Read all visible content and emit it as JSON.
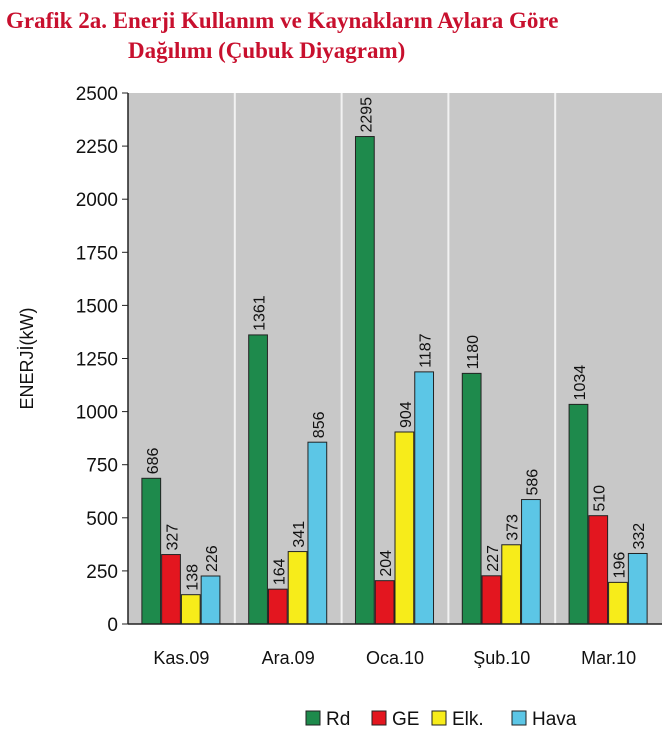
{
  "header": {
    "title_line1": "Grafik 2a. Enerji Kullanım ve Kaynakların Aylara Göre",
    "title_line2": "Dağılımı (Çubuk Diyagram)"
  },
  "chart_data": {
    "type": "bar",
    "title": "Grafik 2a. Enerji Kullanım ve Kaynakların Aylara Göre Dağılımı (Çubuk Diyagram)",
    "xlabel": "",
    "ylabel": "ENERJİ(kW)",
    "ylim": [
      0,
      2500
    ],
    "yticks": [
      0,
      250,
      500,
      750,
      1000,
      1250,
      1500,
      1750,
      2000,
      2250,
      2500
    ],
    "categories": [
      "Kas.09",
      "Ara.09",
      "Oca.10",
      "Şub.10",
      "Mar.10"
    ],
    "series": [
      {
        "name": "Rd",
        "color": "#1e8a4c",
        "values": [
          686,
          1361,
          2295,
          1180,
          1034
        ]
      },
      {
        "name": "GE",
        "color": "#e3161f",
        "values": [
          327,
          164,
          204,
          227,
          510
        ]
      },
      {
        "name": "Elk.",
        "color": "#f7ec1a",
        "values": [
          138,
          341,
          904,
          373,
          196
        ]
      },
      {
        "name": "Hava",
        "color": "#5cc6e6",
        "values": [
          226,
          856,
          1187,
          586,
          332
        ]
      }
    ],
    "grid": "vertical lines between categories",
    "legend": "bottom",
    "plot_background": "#c8c8c8"
  }
}
